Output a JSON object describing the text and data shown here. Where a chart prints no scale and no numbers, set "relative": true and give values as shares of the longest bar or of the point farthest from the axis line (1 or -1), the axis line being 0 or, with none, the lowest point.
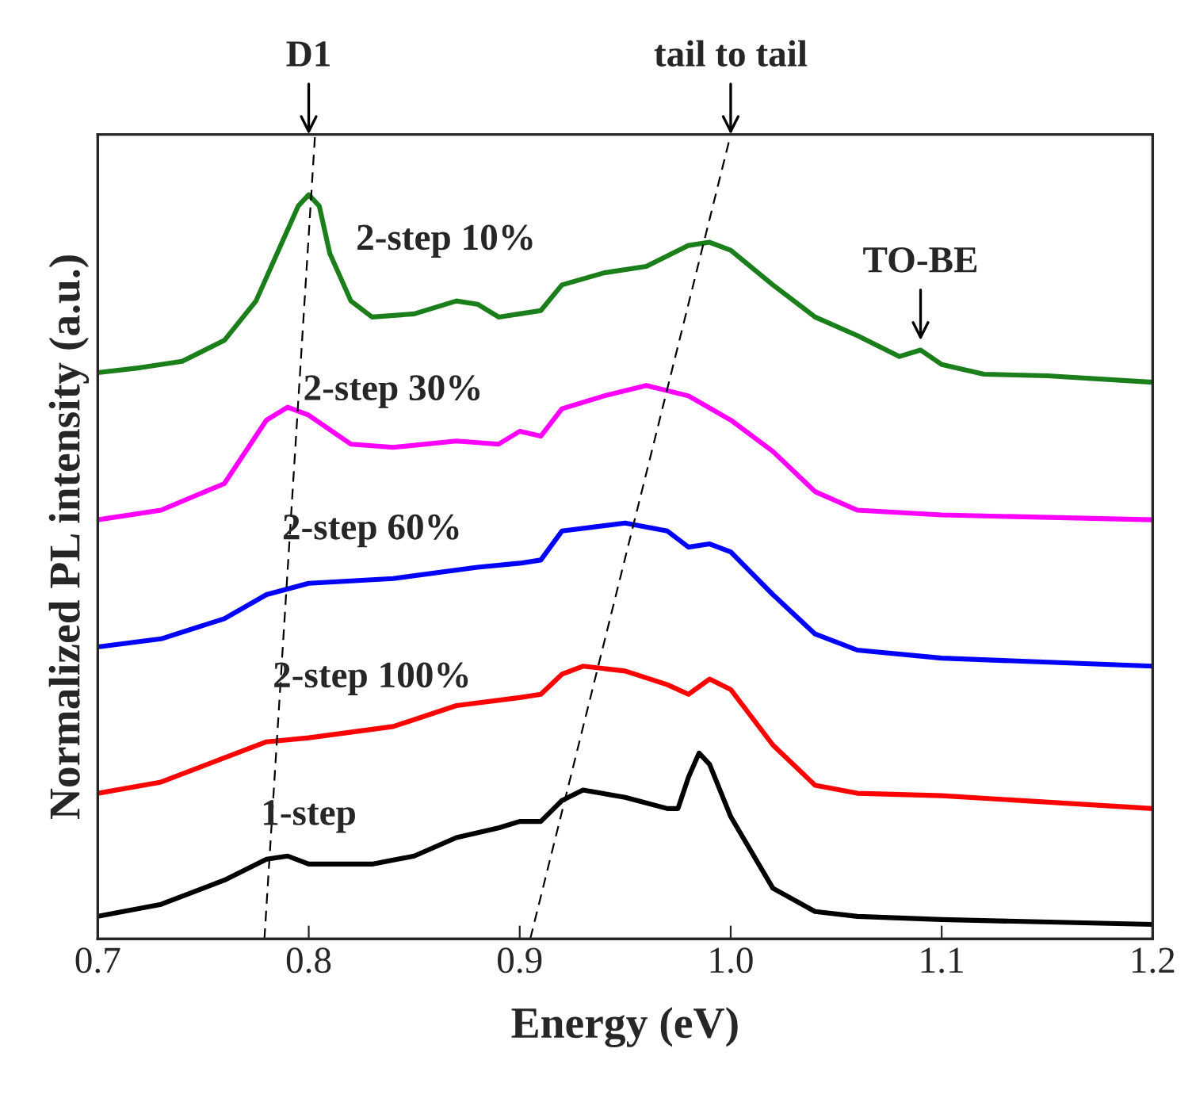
{
  "chart_data": {
    "type": "line",
    "relative": true,
    "xlabel": "Energy (eV)",
    "ylabel": "Normalized PL intensity (a.u.)",
    "xlim": [
      0.7,
      1.2
    ],
    "xticks": [
      0.7,
      0.8,
      0.9,
      {
        "value": 1.0,
        "label": "1.0"
      },
      1.1,
      1.2
    ],
    "tick_labels": "x",
    "grid": false,
    "legend": false,
    "series": [
      {
        "name": "2-step 10%",
        "color": "#1a7f1a",
        "x": [
          0.7,
          0.72,
          0.74,
          0.76,
          0.775,
          0.785,
          0.795,
          0.8,
          0.805,
          0.81,
          0.82,
          0.83,
          0.85,
          0.87,
          0.88,
          0.89,
          0.9,
          0.91,
          0.92,
          0.94,
          0.96,
          0.98,
          0.99,
          1.0,
          1.02,
          1.04,
          1.06,
          1.08,
          1.09,
          1.1,
          1.12,
          1.15,
          1.2
        ],
        "values": [
          0.704,
          0.71,
          0.718,
          0.744,
          0.793,
          0.852,
          0.911,
          0.925,
          0.911,
          0.852,
          0.793,
          0.773,
          0.777,
          0.793,
          0.789,
          0.773,
          0.777,
          0.781,
          0.813,
          0.828,
          0.836,
          0.862,
          0.866,
          0.856,
          0.813,
          0.773,
          0.75,
          0.724,
          0.732,
          0.714,
          0.702,
          0.7,
          0.692
        ]
      },
      {
        "name": "2-step 30%",
        "color": "#ff00ff",
        "x": [
          0.7,
          0.73,
          0.76,
          0.78,
          0.79,
          0.8,
          0.82,
          0.84,
          0.87,
          0.89,
          0.9,
          0.91,
          0.92,
          0.94,
          0.96,
          0.98,
          1.0,
          1.02,
          1.04,
          1.06,
          1.1,
          1.2
        ],
        "values": [
          0.521,
          0.533,
          0.566,
          0.645,
          0.661,
          0.651,
          0.615,
          0.611,
          0.619,
          0.615,
          0.631,
          0.625,
          0.659,
          0.675,
          0.688,
          0.675,
          0.645,
          0.606,
          0.556,
          0.533,
          0.527,
          0.521
        ]
      },
      {
        "name": "2-step 60%",
        "color": "#0000ff",
        "x": [
          0.7,
          0.73,
          0.76,
          0.78,
          0.8,
          0.84,
          0.88,
          0.9,
          0.91,
          0.92,
          0.95,
          0.97,
          0.98,
          0.99,
          1.0,
          1.02,
          1.04,
          1.06,
          1.1,
          1.2
        ],
        "values": [
          0.363,
          0.373,
          0.398,
          0.428,
          0.442,
          0.448,
          0.462,
          0.467,
          0.471,
          0.507,
          0.517,
          0.507,
          0.487,
          0.491,
          0.481,
          0.428,
          0.379,
          0.359,
          0.349,
          0.339
        ]
      },
      {
        "name": "2-step 100%",
        "color": "#ff0000",
        "x": [
          0.7,
          0.73,
          0.76,
          0.78,
          0.8,
          0.84,
          0.87,
          0.9,
          0.91,
          0.92,
          0.93,
          0.95,
          0.97,
          0.98,
          0.99,
          1.0,
          1.02,
          1.04,
          1.06,
          1.1,
          1.2
        ],
        "values": [
          0.181,
          0.195,
          0.225,
          0.245,
          0.25,
          0.264,
          0.29,
          0.3,
          0.304,
          0.329,
          0.339,
          0.333,
          0.316,
          0.304,
          0.323,
          0.31,
          0.241,
          0.191,
          0.181,
          0.178,
          0.162
        ]
      },
      {
        "name": "1-step",
        "color": "#000000",
        "x": [
          0.7,
          0.73,
          0.76,
          0.78,
          0.79,
          0.8,
          0.83,
          0.85,
          0.87,
          0.89,
          0.9,
          0.91,
          0.92,
          0.93,
          0.95,
          0.97,
          0.975,
          0.98,
          0.985,
          0.99,
          1.0,
          1.02,
          1.04,
          1.06,
          1.1,
          1.2
        ],
        "values": [
          0.028,
          0.043,
          0.073,
          0.099,
          0.103,
          0.093,
          0.093,
          0.103,
          0.126,
          0.138,
          0.146,
          0.146,
          0.172,
          0.185,
          0.176,
          0.162,
          0.162,
          0.201,
          0.231,
          0.217,
          0.152,
          0.063,
          0.034,
          0.028,
          0.024,
          0.018
        ]
      },
      {
        "color": "#000000",
        "line_style": "dashed",
        "x": [
          0.779,
          0.803
        ],
        "values": [
          0,
          1
        ]
      },
      {
        "color": "#000000",
        "line_style": "dashed",
        "x": [
          0.905,
          1.0
        ],
        "values": [
          0,
          1
        ]
      }
    ],
    "annotations": [
      {
        "text": "D1",
        "x": 0.8,
        "y": 1.0
      },
      {
        "text": "tail to tail",
        "x": 1.0,
        "y": 1.0
      },
      {
        "text": "TO-BE",
        "x": 1.09,
        "y": 0.744
      }
    ]
  }
}
